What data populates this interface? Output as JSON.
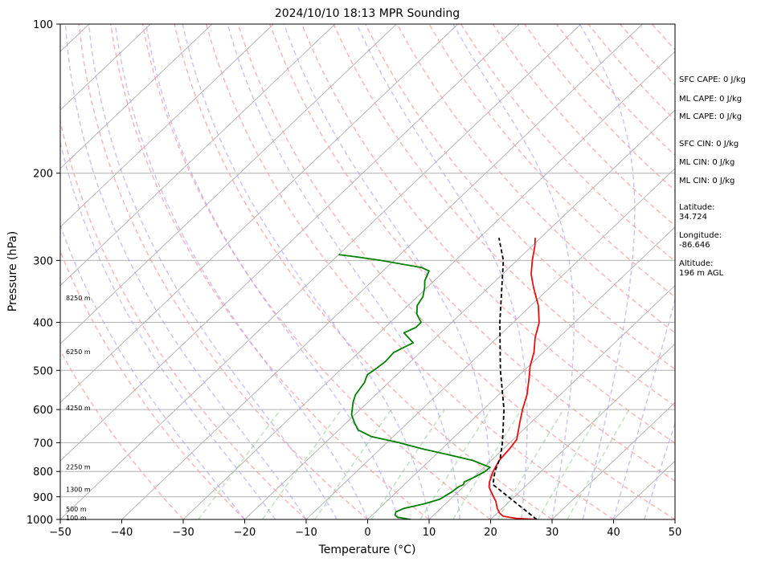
{
  "figure": {
    "title": "2024/10/10 18:13 MPR Sounding",
    "xlabel": "Temperature (°C)",
    "ylabel": "Pressure (hPa)"
  },
  "info_panel": [
    "SFC CAPE: 0 J/kg",
    "ML CAPE: 0 J/kg",
    "ML CAPE: 0 J/kg",
    "SFC CIN: 0 J/kg",
    "ML CIN: 0 J/kg",
    "ML CIN: 0 J/kg",
    "Latitude:\n34.724",
    "Longitude:\n-86.646",
    "Altitude:\n196 m AGL"
  ],
  "height_labels": [
    {
      "text": "8250 m",
      "p": 357
    },
    {
      "text": "6250 m",
      "p": 458
    },
    {
      "text": "4250 m",
      "p": 595
    },
    {
      "text": "2250 m",
      "p": 783
    },
    {
      "text": "1300 m",
      "p": 870
    },
    {
      "text": "500 m",
      "p": 952
    },
    {
      "text": "100 m",
      "p": 993
    }
  ],
  "chart_data": {
    "type": "line",
    "xlim": [
      -50,
      50
    ],
    "ylim": [
      1000,
      100
    ],
    "yscale": "log",
    "xticks": [
      -50,
      -40,
      -30,
      -20,
      -10,
      0,
      10,
      20,
      30,
      40,
      50
    ],
    "yticks": [
      100,
      200,
      300,
      400,
      500,
      600,
      700,
      800,
      900,
      1000
    ],
    "skew": true,
    "series": [
      {
        "role": "temperature",
        "color": "#e8100f",
        "points": [
          [
            1000,
            27.5
          ],
          [
            995,
            24
          ],
          [
            985,
            21.5
          ],
          [
            970,
            20.3
          ],
          [
            950,
            19.2
          ],
          [
            920,
            17.8
          ],
          [
            890,
            16
          ],
          [
            860,
            14.2
          ],
          [
            840,
            13.4
          ],
          [
            800,
            12.2
          ],
          [
            760,
            11.3
          ],
          [
            720,
            11
          ],
          [
            690,
            10.6
          ],
          [
            640,
            8.3
          ],
          [
            600,
            6.4
          ],
          [
            560,
            4.6
          ],
          [
            520,
            2.2
          ],
          [
            490,
            0.2
          ],
          [
            460,
            -1.5
          ],
          [
            430,
            -3.8
          ],
          [
            400,
            -5.8
          ],
          [
            370,
            -8.8
          ],
          [
            340,
            -12.7
          ],
          [
            320,
            -15.3
          ],
          [
            300,
            -17.5
          ],
          [
            280,
            -19.6
          ],
          [
            270,
            -20.9
          ]
        ]
      },
      {
        "role": "dewpoint",
        "color": "#008000",
        "points": [
          [
            1000,
            7
          ],
          [
            996,
            6
          ],
          [
            990,
            4.5
          ],
          [
            980,
            3.7
          ],
          [
            965,
            3.3
          ],
          [
            950,
            4
          ],
          [
            930,
            6.5
          ],
          [
            910,
            8.3
          ],
          [
            880,
            9
          ],
          [
            860,
            9.2
          ],
          [
            850,
            9.6
          ],
          [
            840,
            9.3
          ],
          [
            820,
            10.2
          ],
          [
            800,
            10.9
          ],
          [
            785,
            11
          ],
          [
            760,
            7
          ],
          [
            740,
            2
          ],
          [
            720,
            -3.2
          ],
          [
            700,
            -8
          ],
          [
            680,
            -13.6
          ],
          [
            660,
            -16.8
          ],
          [
            640,
            -18.5
          ],
          [
            615,
            -20.5
          ],
          [
            600,
            -21.3
          ],
          [
            580,
            -22.4
          ],
          [
            560,
            -23.3
          ],
          [
            530,
            -23.9
          ],
          [
            510,
            -24.8
          ],
          [
            500,
            -24.5
          ],
          [
            480,
            -24.1
          ],
          [
            460,
            -24.3
          ],
          [
            440,
            -22.8
          ],
          [
            420,
            -26
          ],
          [
            410,
            -25
          ],
          [
            400,
            -25
          ],
          [
            385,
            -27.1
          ],
          [
            370,
            -28.5
          ],
          [
            355,
            -29.1
          ],
          [
            340,
            -30.4
          ],
          [
            330,
            -31.5
          ],
          [
            315,
            -32.5
          ],
          [
            310,
            -34.3
          ],
          [
            300,
            -42.1
          ],
          [
            295,
            -46.8
          ],
          [
            292,
            -50
          ]
        ]
      },
      {
        "role": "parcel",
        "color": "#000000",
        "dashed": true,
        "points": [
          [
            1000,
            27.5
          ],
          [
            850,
            14.4
          ],
          [
            800,
            12.5
          ],
          [
            750,
            11
          ],
          [
            700,
            8.8
          ],
          [
            600,
            3.4
          ],
          [
            500,
            -3.9
          ],
          [
            400,
            -12.2
          ],
          [
            300,
            -22.2
          ],
          [
            270,
            -26.8
          ]
        ]
      }
    ]
  }
}
